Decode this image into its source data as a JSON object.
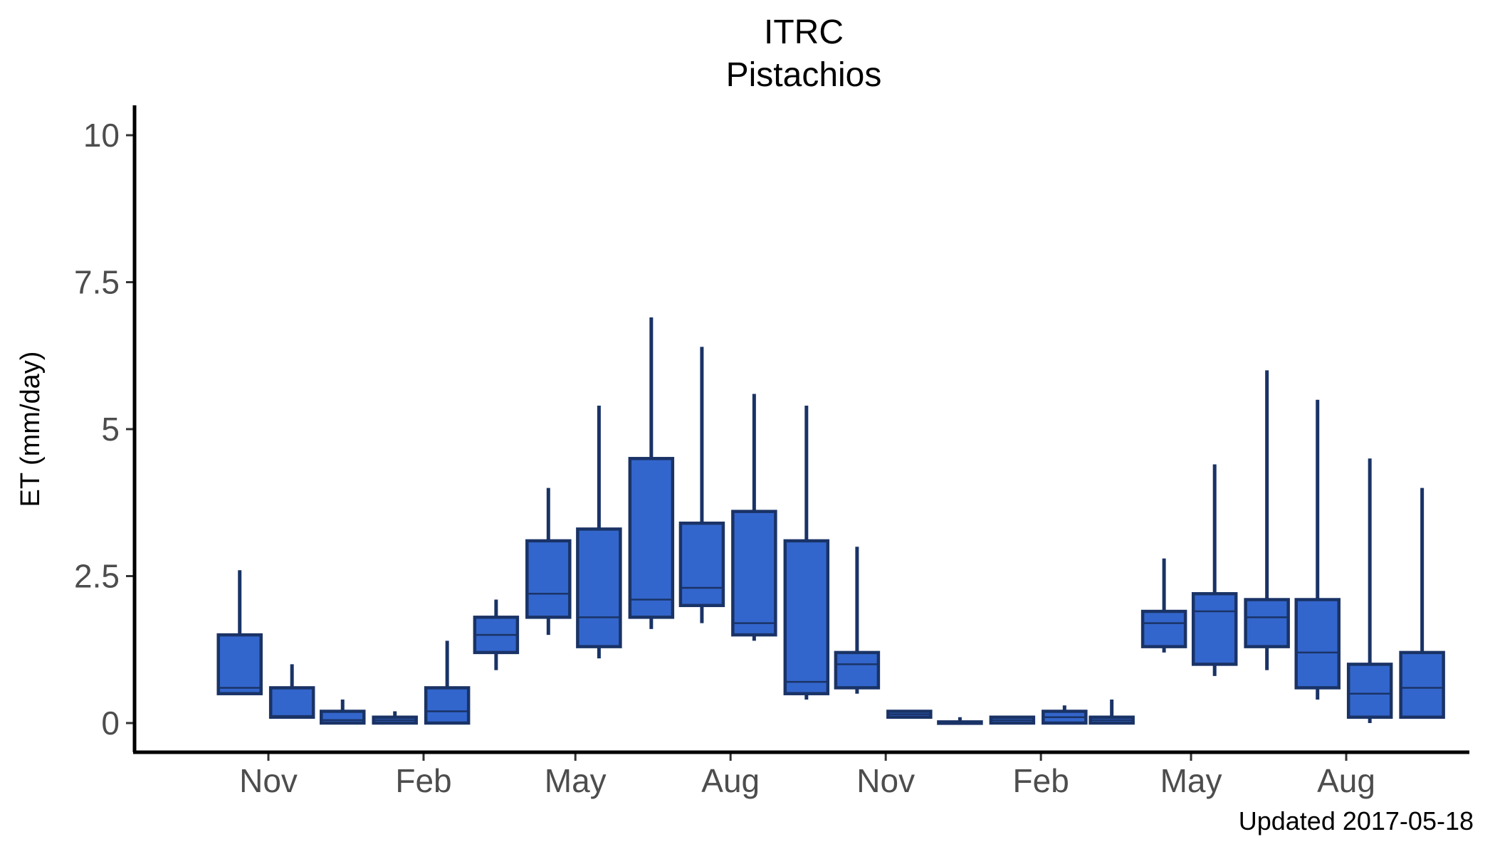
{
  "chart_data": {
    "type": "box",
    "title": "ITRC",
    "subtitle": "Pistachios",
    "xlabel": "",
    "ylabel": "ET (mm/day)",
    "caption": "Updated  2017-05-18",
    "ylim": [
      -0.5,
      10.5
    ],
    "yticks": [
      0,
      2.5,
      5,
      7.5,
      10
    ],
    "ytick_labels": [
      "0",
      "2.5",
      "5",
      "7.5",
      "10"
    ],
    "xticks": [
      "2015-11",
      "2016-02",
      "2016-05",
      "2016-08",
      "2016-11",
      "2017-02",
      "2017-05",
      "2017-08"
    ],
    "xtick_labels": [
      "Nov",
      "Feb",
      "May",
      "Aug",
      "Nov",
      "Feb",
      "May",
      "Aug"
    ],
    "x_range": [
      "2015-08-15",
      "2017-10-15"
    ],
    "fill_color": "#3366CC",
    "line_color": "#1A3366",
    "grid": false,
    "boxes": [
      {
        "month": "2015-10",
        "min": 0.5,
        "q1": 0.5,
        "median": 0.6,
        "q3": 1.5,
        "max": 2.6
      },
      {
        "month": "2015-11",
        "min": 0.1,
        "q1": 0.1,
        "median": 0.12,
        "q3": 0.6,
        "max": 1.0
      },
      {
        "month": "2015-12",
        "min": 0.0,
        "q1": 0.0,
        "median": 0.05,
        "q3": 0.2,
        "max": 0.4
      },
      {
        "month": "2016-01",
        "min": 0.0,
        "q1": 0.0,
        "median": 0.05,
        "q3": 0.1,
        "max": 0.2
      },
      {
        "month": "2016-02",
        "min": 0.0,
        "q1": 0.0,
        "median": 0.2,
        "q3": 0.6,
        "max": 1.4
      },
      {
        "month": "2016-03",
        "min": 0.9,
        "q1": 1.2,
        "median": 1.5,
        "q3": 1.8,
        "max": 2.1
      },
      {
        "month": "2016-04",
        "min": 1.5,
        "q1": 1.8,
        "median": 2.2,
        "q3": 3.1,
        "max": 4.0
      },
      {
        "month": "2016-05",
        "min": 1.1,
        "q1": 1.3,
        "median": 1.8,
        "q3": 3.3,
        "max": 5.4
      },
      {
        "month": "2016-06",
        "min": 1.6,
        "q1": 1.8,
        "median": 2.1,
        "q3": 4.5,
        "max": 6.9
      },
      {
        "month": "2016-07",
        "min": 1.7,
        "q1": 2.0,
        "median": 2.3,
        "q3": 3.4,
        "max": 6.4
      },
      {
        "month": "2016-08",
        "min": 1.4,
        "q1": 1.5,
        "median": 1.7,
        "q3": 3.6,
        "max": 5.6
      },
      {
        "month": "2016-09",
        "min": 0.4,
        "q1": 0.5,
        "median": 0.7,
        "q3": 3.1,
        "max": 5.4
      },
      {
        "month": "2016-10",
        "min": 0.5,
        "q1": 0.6,
        "median": 1.0,
        "q3": 1.2,
        "max": 3.0
      },
      {
        "month": "2016-11",
        "min": 0.1,
        "q1": 0.1,
        "median": 0.15,
        "q3": 0.2,
        "max": 0.2
      },
      {
        "month": "2016-12",
        "min": 0.0,
        "q1": 0.0,
        "median": 0.0,
        "q3": 0.02,
        "max": 0.1
      },
      {
        "month": "2017-01",
        "min": 0.0,
        "q1": 0.0,
        "median": 0.05,
        "q3": 0.1,
        "max": 0.1
      },
      {
        "month": "2017-02",
        "min": 0.0,
        "q1": 0.0,
        "median": 0.1,
        "q3": 0.2,
        "max": 0.3
      },
      {
        "month": "2017-03",
        "min": 0.0,
        "q1": 0.0,
        "median": 0.05,
        "q3": 0.1,
        "max": 0.4
      },
      {
        "month": "2017-04",
        "min": 1.2,
        "q1": 1.3,
        "median": 1.7,
        "q3": 1.9,
        "max": 2.8
      },
      {
        "month": "2017-05",
        "min": 0.8,
        "q1": 1.0,
        "median": 1.9,
        "q3": 2.2,
        "max": 4.4
      },
      {
        "month": "2017-06",
        "min": 0.9,
        "q1": 1.3,
        "median": 1.8,
        "q3": 2.1,
        "max": 6.0
      },
      {
        "month": "2017-07",
        "min": 0.4,
        "q1": 0.6,
        "median": 1.2,
        "q3": 2.1,
        "max": 5.5
      },
      {
        "month": "2017-08",
        "min": 0.0,
        "q1": 0.1,
        "median": 0.5,
        "q3": 1.0,
        "max": 4.5
      },
      {
        "month": "2017-09",
        "min": 0.1,
        "q1": 0.1,
        "median": 0.6,
        "q3": 1.2,
        "max": 4.0
      }
    ]
  }
}
